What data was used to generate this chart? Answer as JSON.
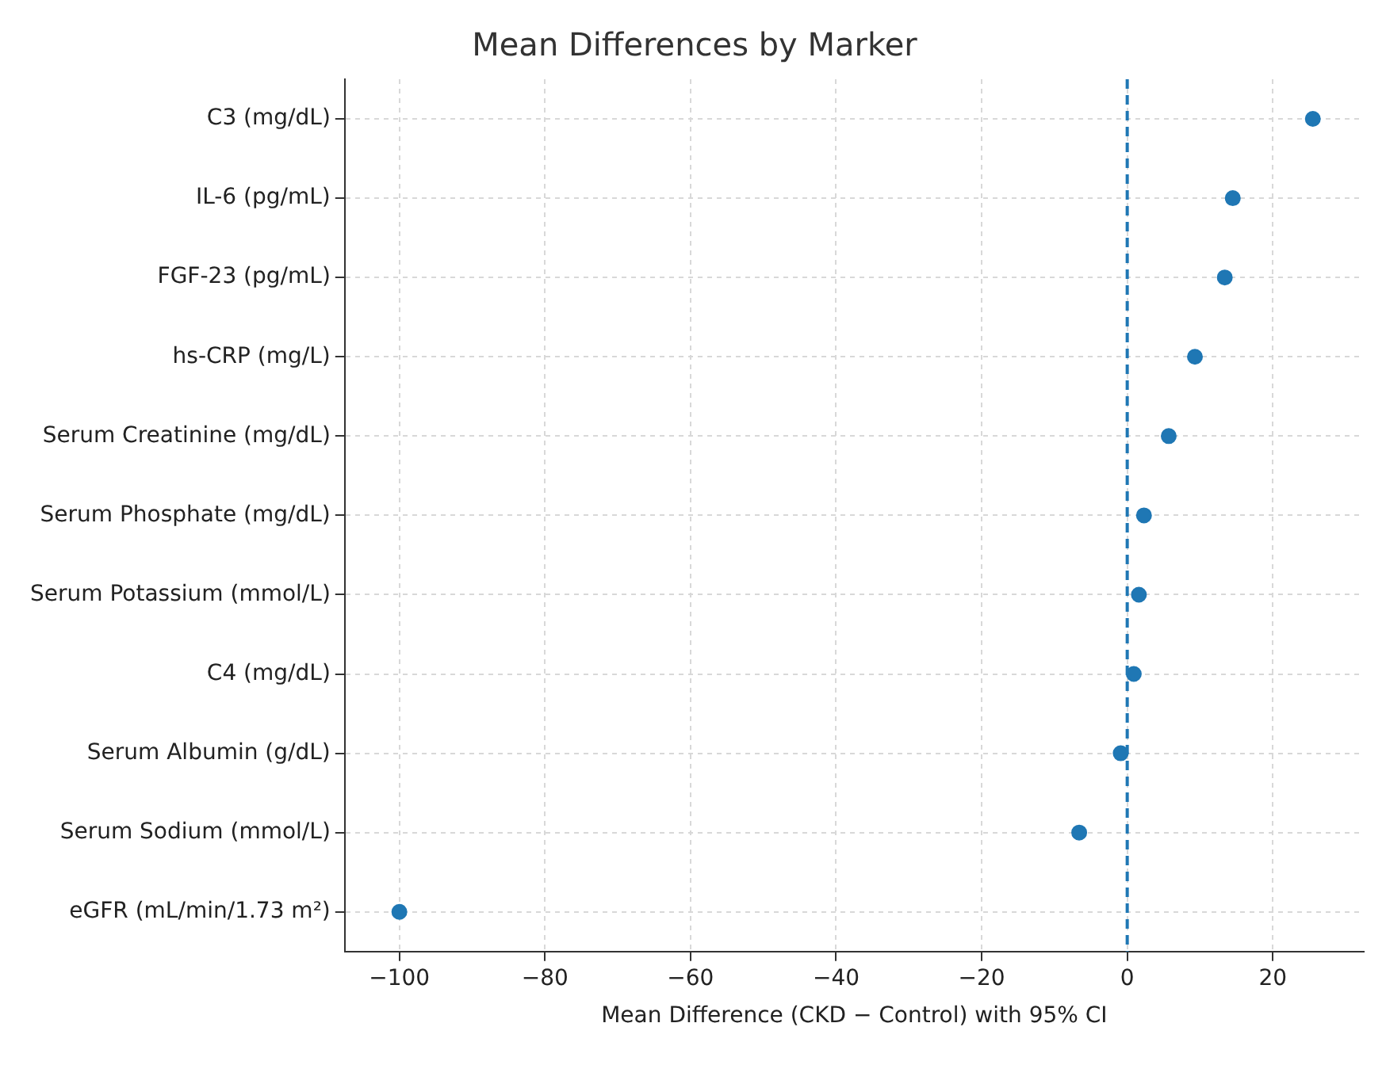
{
  "chart_data": {
    "type": "scatter",
    "title": "Mean Differences by Marker",
    "xlabel": "Mean Difference (CKD − Control) with 95% CI",
    "orientation": "horizontal",
    "categories": [
      "C3 (mg/dL)",
      "IL-6 (pg/mL)",
      "FGF-23 (pg/mL)",
      "hs-CRP (mg/L)",
      "Serum Creatinine (mg/dL)",
      "Serum Phosphate (mg/dL)",
      "Serum Potassium (mmol/L)",
      "C4 (mg/dL)",
      "Serum Albumin (g/dL)",
      "Serum Sodium (mmol/L)",
      "eGFR (mL/min/1.73 m²)"
    ],
    "series": [
      {
        "color": "#1f77b4",
        "values": [
          25.5,
          14.5,
          13.4,
          9.3,
          5.7,
          2.3,
          1.6,
          0.9,
          -0.9,
          -6.6,
          -100
        ]
      }
    ],
    "xlim": [
      -107.5,
      32.5
    ],
    "xticks": [
      -100,
      -80,
      -60,
      -40,
      -20,
      0,
      20
    ],
    "ref_lines": [
      {
        "axis": "x",
        "value": 0,
        "color": "#1f77b4",
        "line_style": "dashed"
      }
    ],
    "grid": true,
    "marker": "circle",
    "legend": false
  }
}
